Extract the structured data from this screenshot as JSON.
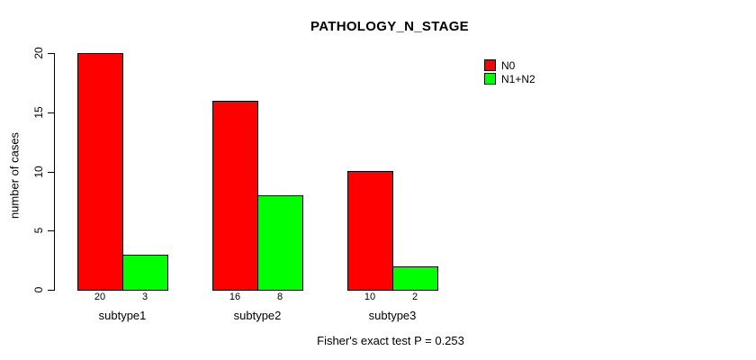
{
  "title": "PATHOLOGY_N_STAGE",
  "chart_data": {
    "type": "bar",
    "title": "PATHOLOGY_N_STAGE",
    "categories": [
      "subtype1",
      "subtype2",
      "subtype3"
    ],
    "series": [
      {
        "name": "N0",
        "color": "#ff0000",
        "values": [
          20,
          16,
          10
        ]
      },
      {
        "name": "N1+N2",
        "color": "#00ff00",
        "values": [
          3,
          8,
          2
        ]
      }
    ],
    "xlabel": "",
    "ylabel": "number of cases",
    "yticks": [
      0,
      5,
      10,
      15,
      20
    ],
    "ylim": [
      0,
      20
    ],
    "grid": false,
    "legend_position": "top-right",
    "bar_value_labels_shown": true,
    "annotation": "Fisher's exact test P = 0.253"
  },
  "footer": {
    "note": "Fisher's exact test P = 0.253"
  }
}
